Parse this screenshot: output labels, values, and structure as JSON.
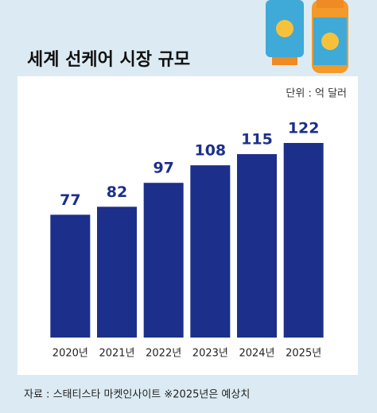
{
  "chart_data": {
    "type": "bar",
    "title": "세계 선케어 시장 규모",
    "subtitle": "단위 : 억 달러",
    "categories": [
      "2020년",
      "2021년",
      "2022년",
      "2023년",
      "2024년",
      "2025년"
    ],
    "values": [
      77,
      82,
      97,
      108,
      115,
      122
    ],
    "color": "#1c2f8a",
    "source": "자료 : 스태티스타 마켓인사이트 ※2025년은 예상치"
  }
}
